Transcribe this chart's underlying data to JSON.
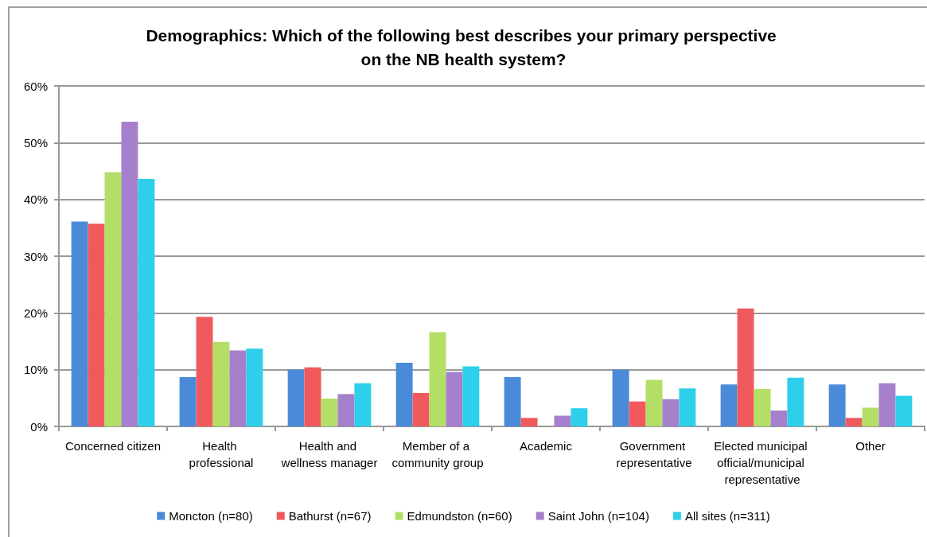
{
  "chart_data": {
    "type": "bar",
    "title": "Demographics: Which of the following best describes your primary perspective on the NB health system?",
    "categories": [
      "Concerned citizen",
      "Health professional",
      "Health and wellness manager",
      "Member of a community group",
      "Academic",
      "Government representative",
      "Elected municipal official/municipal representative",
      "Other"
    ],
    "series": [
      {
        "name": "Moncton (n=80)",
        "color": "#4a8ad8",
        "values": [
          36.1,
          8.7,
          10.0,
          11.2,
          8.7,
          10.0,
          7.4,
          7.4
        ]
      },
      {
        "name": "Bathurst (n=67)",
        "color": "#f05a5c",
        "values": [
          35.7,
          19.3,
          10.4,
          5.9,
          1.5,
          4.4,
          20.8,
          1.5
        ]
      },
      {
        "name": "Edmundston (n=60)",
        "color": "#b3df66",
        "values": [
          44.8,
          14.9,
          4.9,
          16.6,
          0,
          8.2,
          6.6,
          3.3
        ]
      },
      {
        "name": "Saint John (n=104)",
        "color": "#a680cc",
        "values": [
          53.7,
          13.4,
          5.7,
          9.6,
          1.9,
          4.8,
          2.8,
          7.6
        ]
      },
      {
        "name": "All sites (n=311)",
        "color": "#2dcfeb",
        "values": [
          43.6,
          13.7,
          7.6,
          10.6,
          3.2,
          6.7,
          8.6,
          5.4
        ]
      }
    ],
    "ylim": [
      0,
      60
    ],
    "yticks": [
      {
        "value": 0,
        "label": "0%"
      },
      {
        "value": 10,
        "label": "10%"
      },
      {
        "value": 20,
        "label": "20%"
      },
      {
        "value": 30,
        "label": "30%"
      },
      {
        "value": 40,
        "label": "40%"
      },
      {
        "value": 50,
        "label": "50%"
      },
      {
        "value": 60,
        "label": "60%"
      }
    ],
    "grid": "y",
    "legend": "bottom"
  }
}
